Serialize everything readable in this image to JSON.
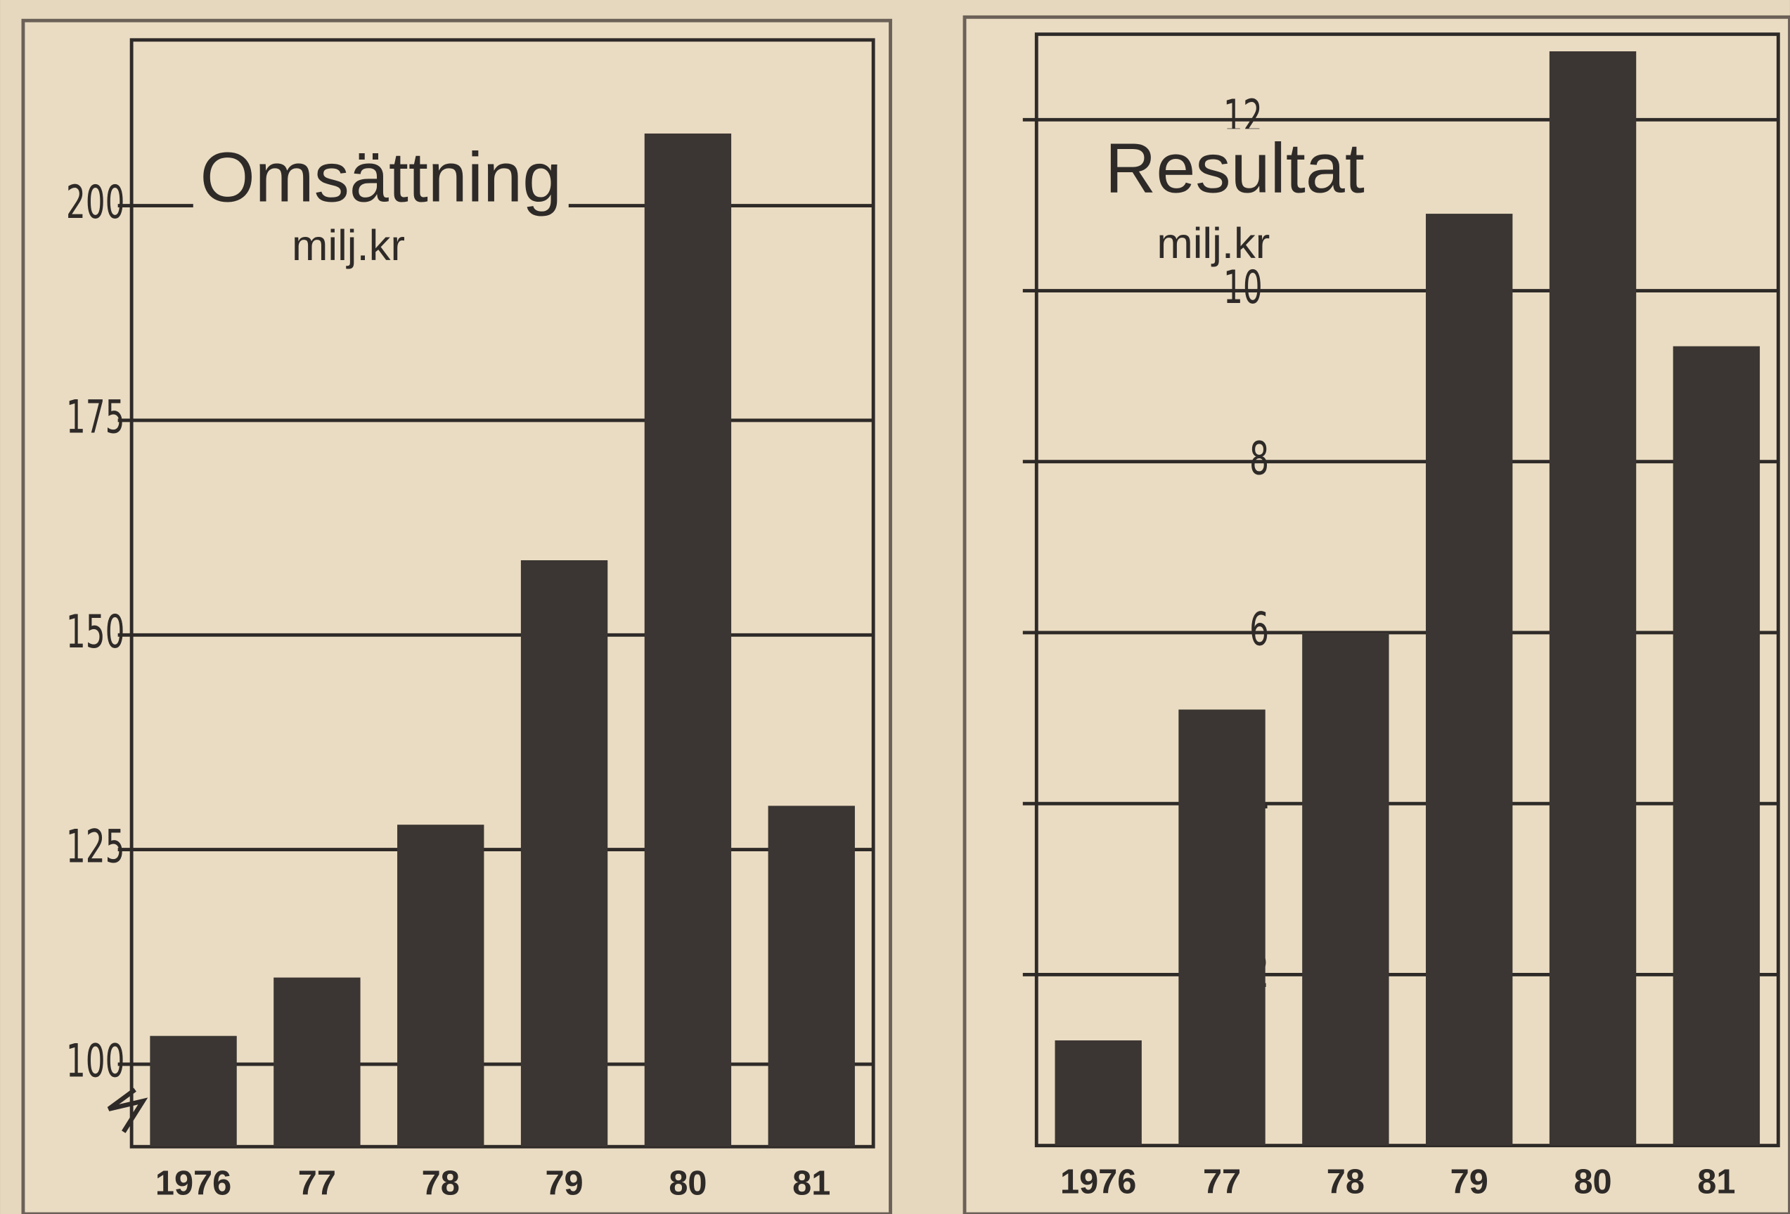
{
  "chart_data": [
    {
      "type": "bar",
      "title": "Omsättning",
      "subtitle": "milj.kr",
      "categories": [
        "1976",
        "77",
        "78",
        "79",
        "80",
        "81"
      ],
      "values": [
        103.3,
        110.1,
        127.9,
        158.7,
        208.4,
        130.1
      ],
      "color": "#3b3633",
      "ylim": [
        90.4,
        219.3
      ],
      "yticks": [
        100,
        125,
        150,
        175,
        200
      ],
      "grid": true
    },
    {
      "type": "bar",
      "title": "Resultat",
      "subtitle": "milj.kr",
      "categories": [
        "1976",
        "77",
        "78",
        "79",
        "80",
        "81"
      ],
      "values": [
        1.23,
        5.1,
        6.0,
        10.9,
        12.8,
        9.35
      ],
      "color": "#3b3633",
      "ylim": [
        0,
        13
      ],
      "yticks": [
        2,
        4,
        6,
        8,
        10,
        12
      ],
      "grid": true
    }
  ]
}
